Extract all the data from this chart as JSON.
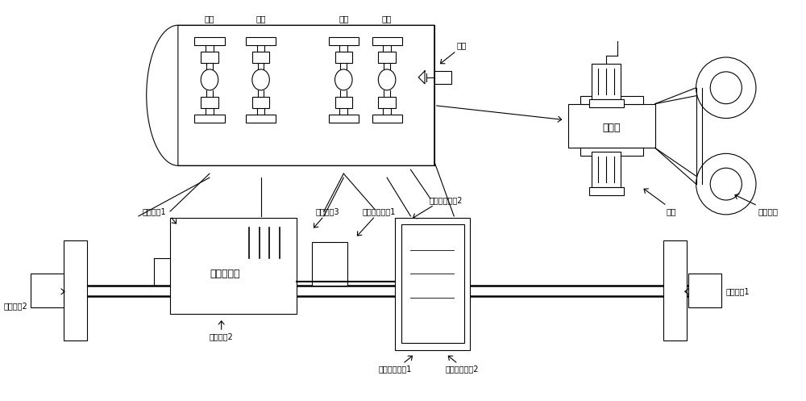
{
  "bg_color": "#ffffff",
  "line_color": "#000000",
  "fig_width": 10.0,
  "fig_height": 4.97,
  "labels": {
    "yi_zhou": "一轴",
    "er_zhou": "二轴",
    "san_zhou": "三轴",
    "si_zhou": "四轴",
    "che_gou": "车锤",
    "zhi_dong_pan": "制动盘",
    "jia_pian": "闸片",
    "zhi_dong_gan_gan": "制动杆杆",
    "dian_ji_zhou_cheng1": "电机轴承1",
    "dian_ji_zhou_cheng2": "电机轴承2",
    "dian_ji_zhou_cheng3": "电机轴承3",
    "qian_yin_dian_dong_ji": "牢引电动机",
    "xiao_chi_lun_xiang_zhou_cheng1": "小齿轮筱轴承1",
    "xiao_chi_lun_xiang_zhou_cheng2": "小齿轮筱轴承2",
    "da_chi_lun_xiang_zhou_cheng1": "大齿轮筱轴承1",
    "da_chi_lun_xiang_zhou_cheng2": "大齿轮筱轴承2",
    "zhou_xiang_zhou_cheng1": "轴筱轴承1",
    "zhou_xiang_zhou_cheng2": "轴筱轴承2"
  }
}
